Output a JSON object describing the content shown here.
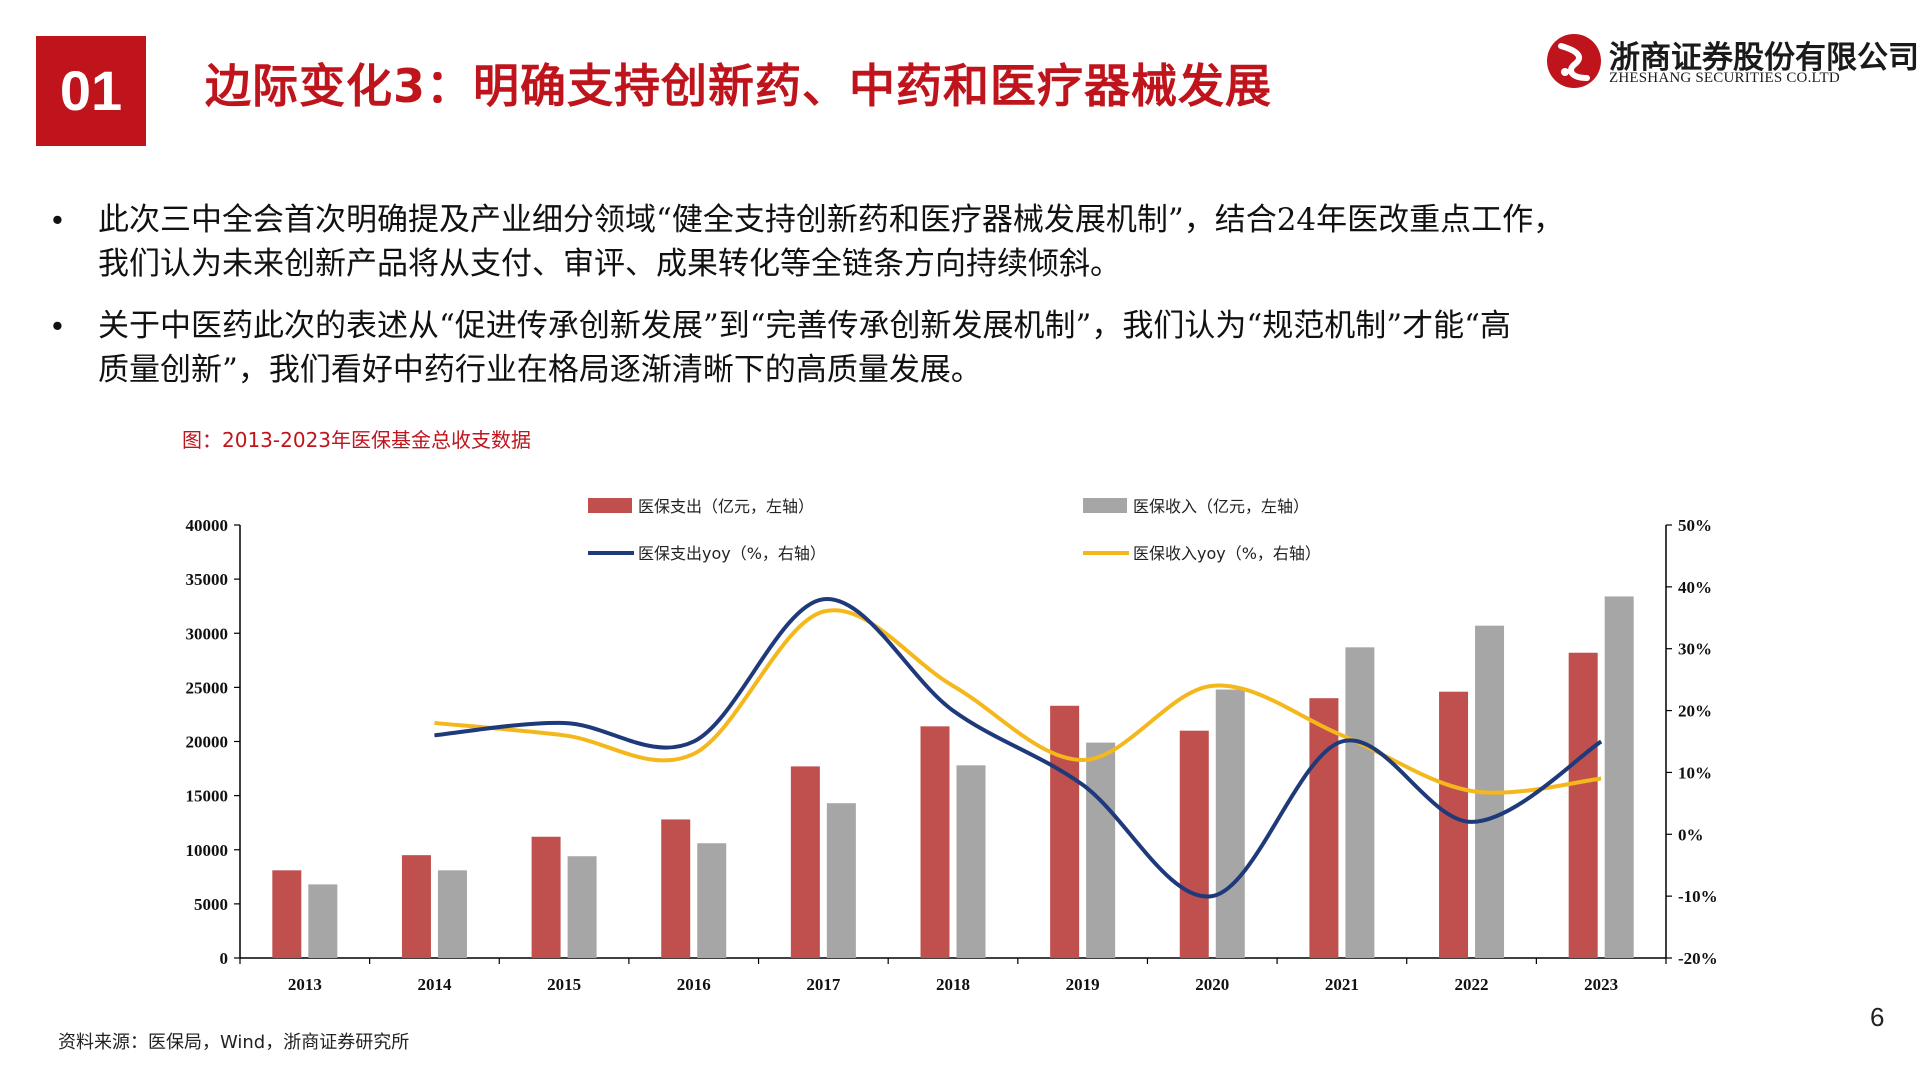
{
  "header": {
    "section_number": "01",
    "title": "边际变化3：明确支持创新药、中药和医疗器械发展"
  },
  "logo": {
    "company_cn": "浙商证券股份有限公司",
    "company_en": "ZHESHANG SECURITIES CO.LTD"
  },
  "bullets": [
    {
      "line1": "此次三中全会首次明确提及产业细分领域“健全支持创新药和医疗器械发展机制”，结合24年医改重点工作，",
      "line2": "我们认为未来创新产品将从支付、审评、成果转化等全链条方向持续倾斜。"
    },
    {
      "line1": "关于中医药此次的表述从“促进传承创新发展”到“完善传承创新发展机制”，我们认为“规范机制”才能“高",
      "line2": "质量创新”，我们看好中药行业在格局逐渐清晰下的高质量发展。"
    }
  ],
  "figure_caption": "图：2013-2023年医保基金总收支数据",
  "source": "资料来源：医保局，Wind，浙商证券研究所",
  "page_number": "6",
  "colors": {
    "brand_red": "#c0141d",
    "expense_bar": "#c0504d",
    "income_bar": "#a6a6a6",
    "expense_yoy_line": "#1f3a7a",
    "income_yoy_line": "#f5b81c"
  },
  "chart_data": {
    "type": "bar",
    "categories": [
      "2013",
      "2014",
      "2015",
      "2016",
      "2017",
      "2018",
      "2019",
      "2020",
      "2021",
      "2022",
      "2023"
    ],
    "series": [
      {
        "name": "医保支出（亿元，左轴）",
        "axis": "left",
        "kind": "bar",
        "values": [
          8100,
          9500,
          11200,
          12800,
          17700,
          21400,
          23300,
          21000,
          24000,
          24600,
          28200
        ]
      },
      {
        "name": "医保收入（亿元，左轴）",
        "axis": "left",
        "kind": "bar",
        "values": [
          6800,
          8100,
          9400,
          10600,
          14300,
          17800,
          19900,
          24800,
          28700,
          30700,
          33400
        ]
      },
      {
        "name": "医保支出yoy（%，右轴）",
        "axis": "right",
        "kind": "line",
        "values": [
          null,
          16,
          18,
          15,
          38,
          20,
          8,
          -10,
          15,
          2,
          15
        ]
      },
      {
        "name": "医保收入yoy（%，右轴）",
        "axis": "right",
        "kind": "line",
        "values": [
          null,
          18,
          16,
          13,
          36,
          24,
          12,
          24,
          16,
          7,
          9
        ]
      }
    ],
    "y_left": {
      "min": 0,
      "max": 40000,
      "ticks": [
        "0",
        "5000",
        "10000",
        "15000",
        "20000",
        "25000",
        "30000",
        "35000",
        "40000"
      ]
    },
    "y_right": {
      "min": -20,
      "max": 50,
      "ticks": [
        "-20%",
        "-10%",
        "0%",
        "10%",
        "20%",
        "30%",
        "40%",
        "50%"
      ]
    },
    "legend_position": "top"
  }
}
